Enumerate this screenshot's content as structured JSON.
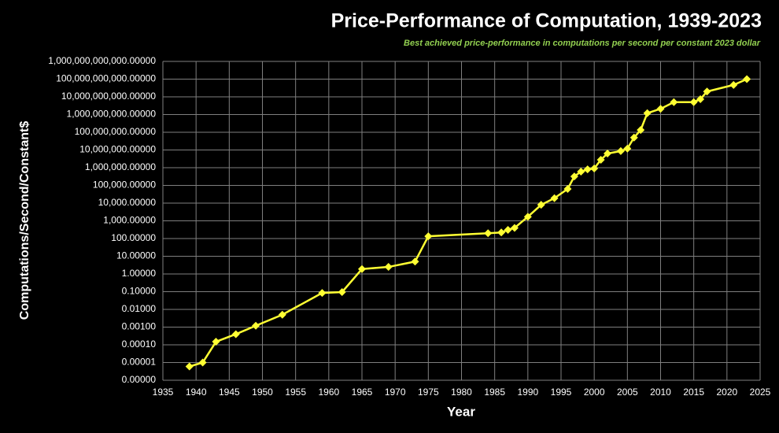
{
  "chart_data": {
    "type": "line",
    "title": "Price-Performance of Computation, 1939-2023",
    "subtitle": "Best achieved price-performance in computations per second per constant 2023 dollar",
    "x_label": "Year",
    "y_label": "Computations/Second/Constant$",
    "log_y": true,
    "grid": true,
    "color": "#ffff33",
    "subtitle_color": "#92d050",
    "x": [
      1939,
      1941,
      1943,
      1946,
      1949,
      1953,
      1959,
      1962,
      1965,
      1969,
      1973,
      1975,
      1984,
      1986,
      1987,
      1988,
      1990,
      1992,
      1994,
      1996,
      1997,
      1998,
      1999,
      2000,
      2001,
      2002,
      2004,
      2005,
      2006,
      2007,
      2008,
      2010,
      2012,
      2015,
      2016,
      2017,
      2021,
      2023
    ],
    "values": [
      6e-06,
      1e-05,
      0.00015,
      0.0004,
      0.0012,
      0.005,
      0.085,
      0.095,
      1.9,
      2.5,
      5,
      135,
      200,
      220,
      310,
      400,
      1700,
      8000,
      19000,
      63000,
      320000,
      600000,
      800000,
      900000,
      2800000,
      6300000,
      8700000,
      12000000,
      50000000,
      135000000,
      1200000000,
      2100000000,
      5000000000,
      5000000000,
      7400000000,
      20000000000,
      47000000000,
      100000000000
    ],
    "xlim": [
      1935,
      2025
    ],
    "xticks": [
      1935,
      1940,
      1945,
      1950,
      1955,
      1960,
      1965,
      1970,
      1975,
      1980,
      1985,
      1990,
      1995,
      2000,
      2005,
      2010,
      2015,
      2020,
      2025
    ],
    "ylim": [
      1e-06,
      1000000000000
    ],
    "yticks": [
      {
        "value": 1e-06,
        "label": "0.00000"
      },
      {
        "value": 1e-05,
        "label": "0.00001"
      },
      {
        "value": 0.0001,
        "label": "0.00010"
      },
      {
        "value": 0.001,
        "label": "0.00100"
      },
      {
        "value": 0.01,
        "label": "0.01000"
      },
      {
        "value": 0.1,
        "label": "0.10000"
      },
      {
        "value": 1,
        "label": "1.00000"
      },
      {
        "value": 10,
        "label": "10.00000"
      },
      {
        "value": 100,
        "label": "100.00000"
      },
      {
        "value": 1000,
        "label": "1,000.00000"
      },
      {
        "value": 10000,
        "label": "10,000.00000"
      },
      {
        "value": 100000,
        "label": "100,000.00000"
      },
      {
        "value": 1000000,
        "label": "1,000,000.00000"
      },
      {
        "value": 10000000,
        "label": "10,000,000.00000"
      },
      {
        "value": 100000000,
        "label": "100,000,000.00000"
      },
      {
        "value": 1000000000,
        "label": "1,000,000,000.00000"
      },
      {
        "value": 10000000000,
        "label": "10,000,000,000.00000"
      },
      {
        "value": 100000000000,
        "label": "100,000,000,000.00000"
      },
      {
        "value": 1000000000000,
        "label": "1,000,000,000,000.00000"
      }
    ]
  }
}
